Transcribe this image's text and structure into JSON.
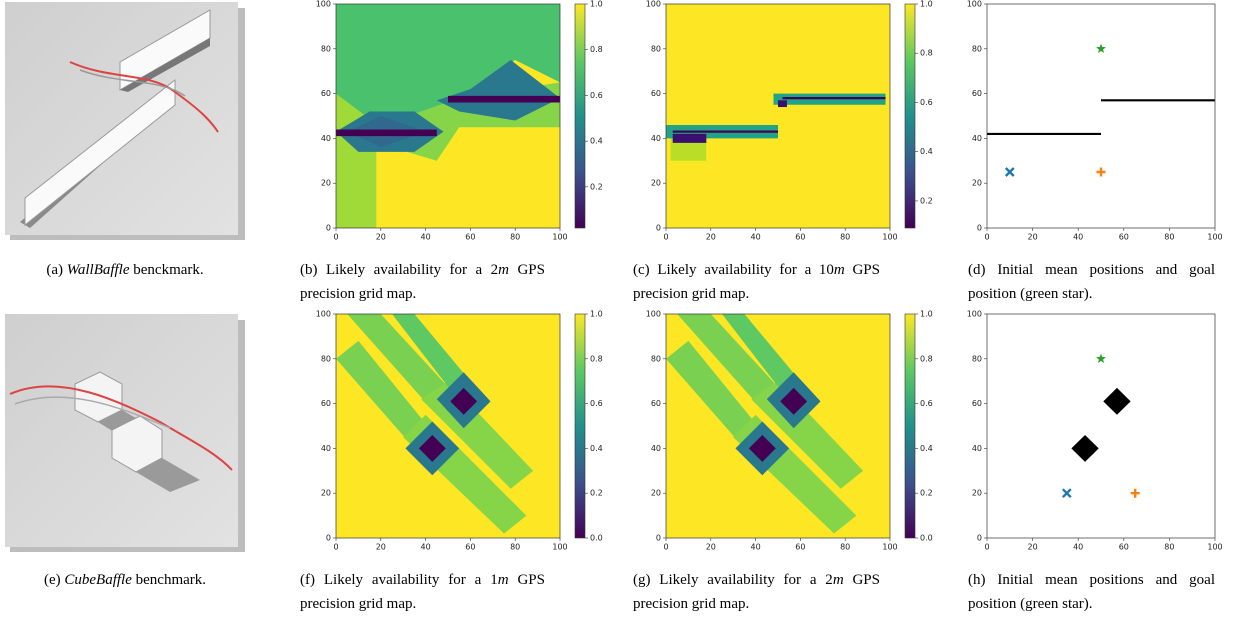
{
  "chart_data": [
    {
      "type": "image",
      "caption": [
        {
          "text": "(a) "
        },
        {
          "text": "WallBaffle",
          "italic": true
        },
        {
          "text": " benckmark."
        }
      ]
    },
    {
      "type": "heatmap",
      "caption": [
        {
          "text": "(b) Likely availability for a 2"
        },
        {
          "text": "m",
          "italic": true
        },
        {
          "text": " GPS precision grid map."
        }
      ],
      "xlim": [
        0,
        100
      ],
      "ylim": [
        0,
        100
      ],
      "xticks": [
        0,
        20,
        40,
        60,
        80,
        100
      ],
      "yticks": [
        0,
        20,
        40,
        60,
        80,
        100
      ],
      "clim": [
        0.02,
        1
      ],
      "cticks": [
        0.2,
        0.4,
        0.6,
        0.8,
        {
          "value": 1,
          "label": "1.0"
        }
      ]
    },
    {
      "type": "heatmap",
      "caption": [
        {
          "text": "(c) Likely availability for a 10"
        },
        {
          "text": "m",
          "italic": true
        },
        {
          "text": " GPS precision grid map."
        }
      ],
      "xlim": [
        0,
        100
      ],
      "ylim": [
        0,
        100
      ],
      "xticks": [
        0,
        20,
        40,
        60,
        80,
        100
      ],
      "yticks": [
        0,
        20,
        40,
        60,
        80,
        100
      ],
      "clim": [
        0.09,
        1
      ],
      "cticks": [
        0.2,
        0.4,
        0.6,
        0.8,
        {
          "value": 1,
          "label": "1.0"
        }
      ]
    },
    {
      "type": "scatter",
      "caption": [
        {
          "text": "(d) Initial mean positions and goal position (green star)."
        }
      ],
      "xlim": [
        0,
        100
      ],
      "ylim": [
        0,
        100
      ],
      "xticks": [
        0,
        20,
        40,
        60,
        80,
        100
      ],
      "yticks": [
        0,
        20,
        40,
        60,
        80,
        100
      ],
      "series": [
        {
          "marker": "x",
          "color": "#1f77b4",
          "x": [
            10
          ],
          "values": [
            25
          ]
        },
        {
          "marker": "plus",
          "color": "#ff7f0e",
          "x": [
            50
          ],
          "values": [
            25
          ]
        },
        {
          "marker": "star",
          "color": "#2ca02c",
          "x": [
            50
          ],
          "values": [
            80
          ]
        }
      ],
      "walls": [
        {
          "x": [
            0,
            50
          ],
          "values": [
            42,
            42
          ]
        },
        {
          "x": [
            50,
            100
          ],
          "values": [
            57,
            57
          ]
        }
      ]
    },
    {
      "type": "image",
      "caption": [
        {
          "text": "(e) "
        },
        {
          "text": "CubeBaffle",
          "italic": true
        },
        {
          "text": " benchmark."
        }
      ]
    },
    {
      "type": "heatmap",
      "caption": [
        {
          "text": "(f) Likely availability for a 1"
        },
        {
          "text": "m",
          "italic": true
        },
        {
          "text": " GPS precision grid map."
        }
      ],
      "xlim": [
        0,
        100
      ],
      "ylim": [
        0,
        100
      ],
      "xticks": [
        0,
        20,
        40,
        60,
        80,
        100
      ],
      "yticks": [
        0,
        20,
        40,
        60,
        80,
        100
      ],
      "clim": [
        0,
        1
      ],
      "cticks": [
        {
          "value": 0,
          "label": "0.0"
        },
        0.2,
        0.4,
        0.6,
        0.8,
        {
          "value": 1,
          "label": "1.0"
        }
      ]
    },
    {
      "type": "heatmap",
      "caption": [
        {
          "text": "(g) Likely availability for a 2"
        },
        {
          "text": "m",
          "italic": true
        },
        {
          "text": " GPS precision grid map."
        }
      ],
      "xlim": [
        0,
        100
      ],
      "ylim": [
        0,
        100
      ],
      "xticks": [
        0,
        20,
        40,
        60,
        80,
        100
      ],
      "yticks": [
        0,
        20,
        40,
        60,
        80,
        100
      ],
      "clim": [
        0,
        1
      ],
      "cticks": [
        {
          "value": 0,
          "label": "0.0"
        },
        0.2,
        0.4,
        0.6,
        0.8,
        {
          "value": 1,
          "label": "1.0"
        }
      ]
    },
    {
      "type": "scatter",
      "caption": [
        {
          "text": "(h) Initial mean positions and goal position (green star)."
        }
      ],
      "xlim": [
        0,
        100
      ],
      "ylim": [
        0,
        100
      ],
      "xticks": [
        0,
        20,
        40,
        60,
        80,
        100
      ],
      "yticks": [
        0,
        20,
        40,
        60,
        80,
        100
      ],
      "series": [
        {
          "marker": "x",
          "color": "#1f77b4",
          "x": [
            35
          ],
          "values": [
            20
          ]
        },
        {
          "marker": "plus",
          "color": "#ff7f0e",
          "x": [
            65
          ],
          "values": [
            20
          ]
        },
        {
          "marker": "star",
          "color": "#2ca02c",
          "x": [
            50
          ],
          "values": [
            80
          ]
        }
      ],
      "obstacles": [
        {
          "x": [
            57,
            63,
            57,
            51
          ],
          "values": [
            67,
            61,
            55,
            61
          ]
        },
        {
          "x": [
            43,
            49,
            43,
            37
          ],
          "values": [
            46,
            40,
            34,
            40
          ]
        }
      ]
    }
  ]
}
